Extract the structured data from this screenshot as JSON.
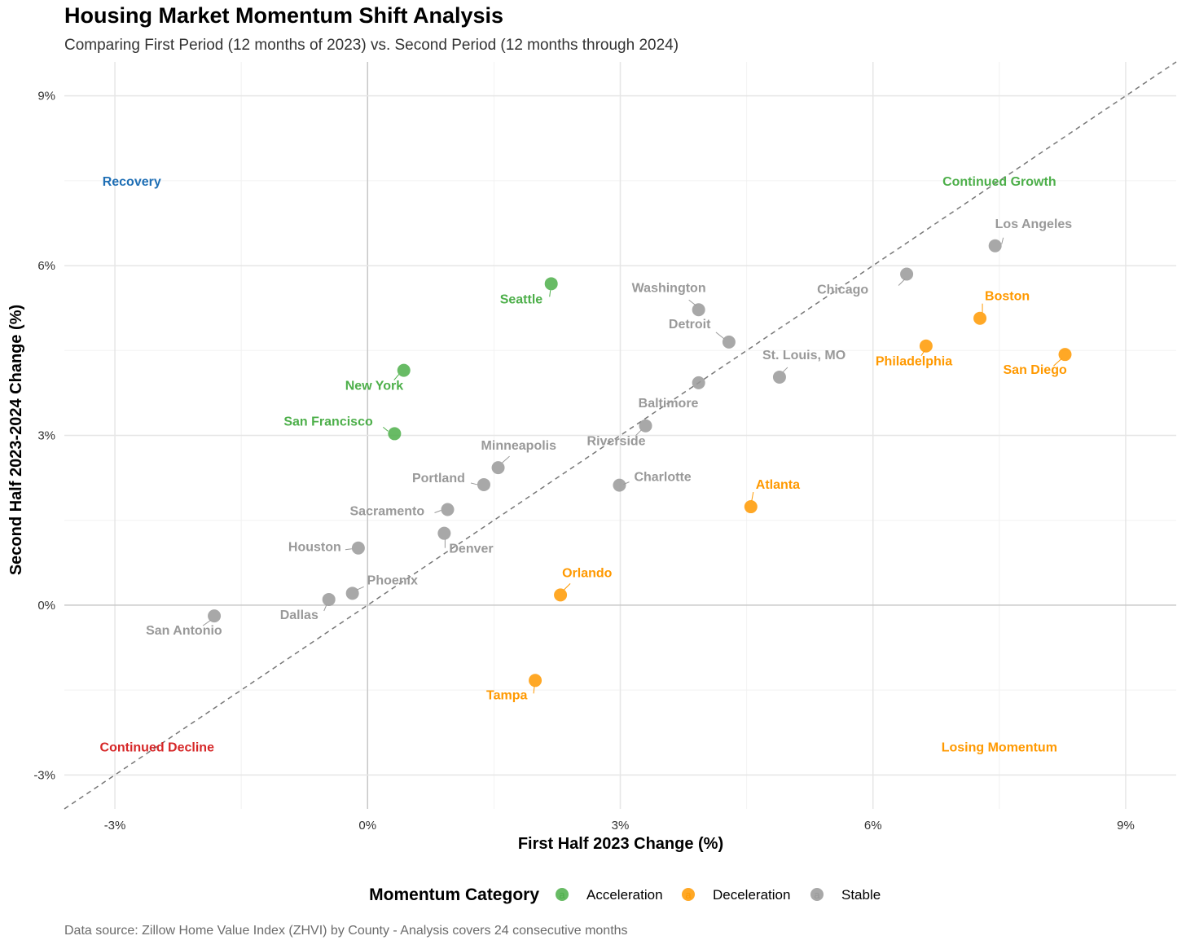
{
  "header": {
    "title": "Housing Market Momentum Shift Analysis",
    "subtitle": "Comparing First Period (12 months of 2023) vs. Second Period (12 months through 2024)"
  },
  "caption": "Data source: Zillow Home Value Index (ZHVI) by County - Analysis covers 24 consecutive months",
  "colors": {
    "Acceleration": "#4daf4a",
    "Deceleration": "#ff9900",
    "Stable": "#999999",
    "Recovery": "#1f6fb5",
    "Continued Decline": "#d62728",
    "reference_line": "#777777"
  },
  "chart_data": {
    "type": "scatter",
    "title": "Housing Market Momentum Shift Analysis",
    "xlabel": "First Half 2023 Change (%)",
    "ylabel": "Second Half 2023-2024 Change (%)",
    "xlim": [
      -3.6,
      9.6
    ],
    "ylim": [
      -3.6,
      9.6
    ],
    "x_ticks": [
      -3,
      0,
      3,
      6,
      9
    ],
    "y_ticks": [
      -3,
      0,
      3,
      6,
      9
    ],
    "x_tick_labels": [
      "-3%",
      "0%",
      "3%",
      "6%",
      "9%"
    ],
    "y_tick_labels": [
      "-3%",
      "0%",
      "3%",
      "6%",
      "9%"
    ],
    "grid": true,
    "reference_line": "y = x",
    "legend": {
      "title": "Momentum Category",
      "position": "bottom",
      "entries": [
        "Acceleration",
        "Deceleration",
        "Stable"
      ],
      "key_glyph": "a"
    },
    "quadrant_labels": [
      {
        "text": "Recovery",
        "x": -2.8,
        "y": 7.5,
        "color_key": "Recovery"
      },
      {
        "text": "Continued Growth",
        "x": 7.5,
        "y": 7.5,
        "color_key": "Acceleration"
      },
      {
        "text": "Continued Decline",
        "x": -2.5,
        "y": -2.5,
        "color_key": "Continued Decline"
      },
      {
        "text": "Losing Momentum",
        "x": 7.5,
        "y": -2.5,
        "color_key": "Deceleration"
      }
    ],
    "points": [
      {
        "name": "Los Angeles",
        "x": 7.45,
        "y": 6.35,
        "category": "Stable"
      },
      {
        "name": "Chicago",
        "x": 6.4,
        "y": 5.85,
        "category": "Stable"
      },
      {
        "name": "Boston",
        "x": 7.27,
        "y": 5.07,
        "category": "Deceleration"
      },
      {
        "name": "Philadelphia",
        "x": 6.63,
        "y": 4.58,
        "category": "Deceleration"
      },
      {
        "name": "San Diego",
        "x": 8.28,
        "y": 4.43,
        "category": "Deceleration"
      },
      {
        "name": "Washington",
        "x": 3.93,
        "y": 5.22,
        "category": "Stable"
      },
      {
        "name": "Detroit",
        "x": 4.29,
        "y": 4.65,
        "category": "Stable"
      },
      {
        "name": "St. Louis, MO",
        "x": 4.89,
        "y": 4.03,
        "category": "Stable"
      },
      {
        "name": "Baltimore",
        "x": 3.93,
        "y": 3.93,
        "category": "Stable"
      },
      {
        "name": "Riverside",
        "x": 3.3,
        "y": 3.17,
        "category": "Stable"
      },
      {
        "name": "Charlotte",
        "x": 2.99,
        "y": 2.12,
        "category": "Stable"
      },
      {
        "name": "Atlanta",
        "x": 4.55,
        "y": 1.74,
        "category": "Deceleration"
      },
      {
        "name": "Seattle",
        "x": 2.18,
        "y": 5.68,
        "category": "Acceleration"
      },
      {
        "name": "New York",
        "x": 0.43,
        "y": 4.15,
        "category": "Acceleration"
      },
      {
        "name": "San Francisco",
        "x": 0.32,
        "y": 3.03,
        "category": "Acceleration"
      },
      {
        "name": "Minneapolis",
        "x": 1.55,
        "y": 2.43,
        "category": "Stable"
      },
      {
        "name": "Portland",
        "x": 1.38,
        "y": 2.13,
        "category": "Stable"
      },
      {
        "name": "Sacramento",
        "x": 0.95,
        "y": 1.69,
        "category": "Stable"
      },
      {
        "name": "Denver",
        "x": 0.91,
        "y": 1.27,
        "category": "Stable"
      },
      {
        "name": "Houston",
        "x": -0.11,
        "y": 1.01,
        "category": "Stable"
      },
      {
        "name": "Orlando",
        "x": 2.29,
        "y": 0.18,
        "category": "Deceleration"
      },
      {
        "name": "Phoenix",
        "x": -0.18,
        "y": 0.21,
        "category": "Stable"
      },
      {
        "name": "Dallas",
        "x": -0.46,
        "y": 0.1,
        "category": "Stable"
      },
      {
        "name": "San Antonio",
        "x": -1.82,
        "y": -0.19,
        "category": "Stable"
      },
      {
        "name": "Tampa",
        "x": 1.99,
        "y": -1.33,
        "category": "Deceleration"
      }
    ]
  }
}
